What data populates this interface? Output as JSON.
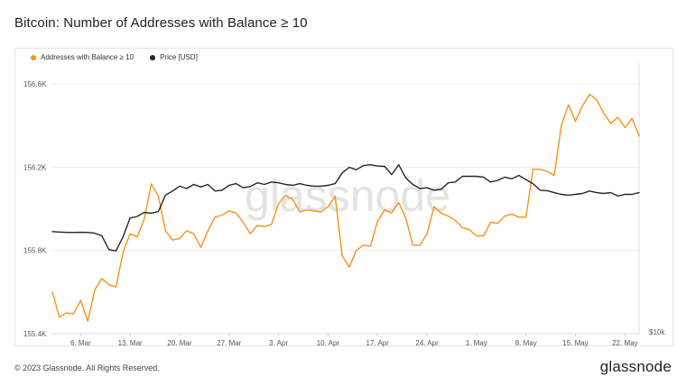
{
  "title": "Bitcoin: Number of Addresses with Balance ≥ 10",
  "footer": "© 2023 Glassnode. All Rights Reserved.",
  "brand": "glassnode",
  "watermark": "glassnode",
  "colors": {
    "addresses": "#F7931A",
    "price": "#262626",
    "grid": "#ececec",
    "watermark": "#e3e3e3"
  },
  "chart_data": {
    "type": "line",
    "title": "Bitcoin: Number of Addresses with Balance ≥ 10",
    "legend": [
      "Addresses with Balance ≥ 10",
      "Price [USD]"
    ],
    "legend_position": "top-left",
    "grid": true,
    "x_tick_labels": [
      "6. Mar",
      "13. Mar",
      "20. Mar",
      "27. Mar",
      "3. Apr",
      "10. Apr",
      "17. Apr",
      "24. Apr",
      "1. May",
      "8. May",
      "15. May",
      "22. May"
    ],
    "x_range": [
      "2023-03-02",
      "2023-05-24"
    ],
    "y_left_ticks": [
      "155.4K",
      "155.8K",
      "156.2K",
      "156.6K"
    ],
    "y_left_range": [
      155400,
      156700
    ],
    "y_right_ticks": [
      "$10k"
    ],
    "series": [
      {
        "name": "Addresses with Balance ≥ 10",
        "axis": "left",
        "start": "2023-03-02",
        "step_days": 1,
        "values": [
          155600,
          155480,
          155500,
          155495,
          155560,
          155460,
          155610,
          155665,
          155635,
          155625,
          155790,
          155880,
          155865,
          155950,
          156120,
          156060,
          155895,
          155850,
          155858,
          155895,
          155880,
          155815,
          155895,
          155960,
          155970,
          155990,
          155980,
          155935,
          155880,
          155920,
          155915,
          155925,
          156025,
          156065,
          156045,
          155985,
          155995,
          155990,
          155985,
          156010,
          156060,
          155775,
          155720,
          155800,
          155825,
          155820,
          155940,
          155995,
          155980,
          156030,
          155955,
          155825,
          155825,
          155880,
          156010,
          155980,
          155965,
          155945,
          155910,
          155900,
          155870,
          155870,
          155935,
          155930,
          155965,
          155975,
          155960,
          155960,
          156190,
          156190,
          156180,
          156160,
          156400,
          156500,
          156420,
          156495,
          156550,
          156525,
          156460,
          156410,
          156440,
          156390,
          156435,
          156350
        ]
      },
      {
        "name": "Price [USD]",
        "axis": "right",
        "start": "2023-03-02",
        "step_days": 1,
        "values": [
          22450,
          22400,
          22350,
          22350,
          22360,
          22350,
          22250,
          21950,
          20250,
          20100,
          21800,
          24100,
          24300,
          24800,
          24700,
          24900,
          26900,
          27400,
          28000,
          27700,
          28200,
          27900,
          28200,
          27400,
          27500,
          28100,
          28300,
          27800,
          27950,
          28400,
          28200,
          28500,
          28400,
          28200,
          28100,
          28300,
          28100,
          28000,
          28000,
          28100,
          28300,
          29600,
          30300,
          30000,
          30500,
          30600,
          30450,
          30400,
          29400,
          30600,
          29000,
          28200,
          27700,
          27800,
          27500,
          27600,
          28400,
          28500,
          29200,
          29200,
          29200,
          29100,
          28500,
          28700,
          29100,
          28900,
          29300,
          28800,
          28300,
          27500,
          27450,
          27200,
          27000,
          26900,
          27000,
          27100,
          27400,
          27200,
          27100,
          27200,
          26800,
          27000,
          27000,
          27200
        ]
      }
    ],
    "price_range_usd": [
      10000,
      43000
    ]
  }
}
